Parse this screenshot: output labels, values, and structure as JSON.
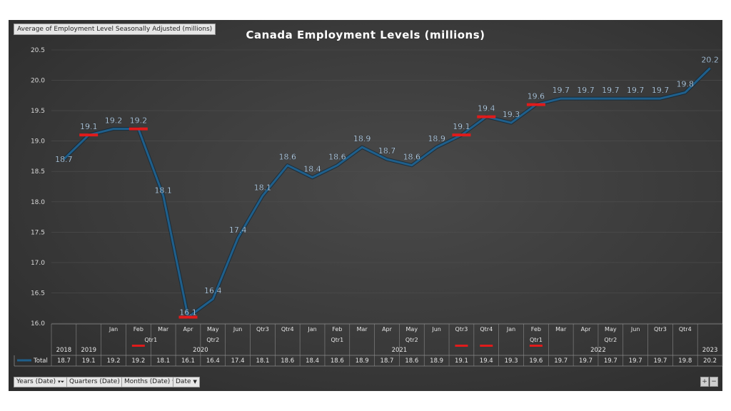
{
  "field_label": "Average of Employment Level Seasonally Adjusted (millions)",
  "filter_buttons": [
    {
      "label": "Years (Date)",
      "icon": "filter-funnel-icon"
    },
    {
      "label": "Quarters (Date)",
      "icon": "dropdown-arrow-icon"
    },
    {
      "label": "Months (Date)",
      "icon": "dropdown-arrow-icon"
    },
    {
      "label": "Date",
      "icon": "dropdown-arrow-icon"
    }
  ],
  "zoom_buttons": [
    "+",
    "−"
  ],
  "colors": {
    "line": "#1f5f8b",
    "highlight": "#e01b1b",
    "label": "#d6ecff",
    "background": "#3a3a3a"
  },
  "chart_data": {
    "type": "line",
    "title": "Canada Employment Levels (millions)",
    "ylim": [
      16.0,
      20.5
    ],
    "yticks": [
      "20.5",
      "20.0",
      "19.5",
      "19.0",
      "18.5",
      "18.0",
      "17.5",
      "17.0",
      "16.5",
      "16.0"
    ],
    "series": [
      {
        "name": "Total"
      }
    ],
    "legend_label": "Total",
    "legend_position": "bottom-left",
    "points": [
      {
        "x": "2018",
        "value": 18.7,
        "label": "18.7",
        "highlight": false
      },
      {
        "x": "2019",
        "value": 19.1,
        "label": "19.1",
        "highlight": true
      },
      {
        "x": "Jan",
        "value": 19.2,
        "label": "19.2",
        "highlight": false
      },
      {
        "x": "Feb",
        "value": 19.2,
        "label": "19.2",
        "highlight": true
      },
      {
        "x": "Mar",
        "value": 18.1,
        "label": "18.1",
        "highlight": false
      },
      {
        "x": "Apr",
        "value": 16.1,
        "label": "16.1",
        "highlight": true
      },
      {
        "x": "May",
        "value": 16.4,
        "label": "16.4",
        "highlight": false
      },
      {
        "x": "Jun",
        "value": 17.4,
        "label": "17.4",
        "highlight": false
      },
      {
        "x": "Qtr3",
        "value": 18.1,
        "label": "18.1",
        "highlight": false
      },
      {
        "x": "Qtr4",
        "value": 18.6,
        "label": "18.6",
        "highlight": false
      },
      {
        "x": "Jan",
        "value": 18.4,
        "label": "18.4",
        "highlight": false
      },
      {
        "x": "Feb",
        "value": 18.6,
        "label": "18.6",
        "highlight": false
      },
      {
        "x": "Mar",
        "value": 18.9,
        "label": "18.9",
        "highlight": false
      },
      {
        "x": "Apr",
        "value": 18.7,
        "label": "18.7",
        "highlight": false
      },
      {
        "x": "May",
        "value": 18.6,
        "label": "18.6",
        "highlight": false
      },
      {
        "x": "Jun",
        "value": 18.9,
        "label": "18.9",
        "highlight": false
      },
      {
        "x": "Qtr3",
        "value": 19.1,
        "label": "19.1",
        "highlight": true
      },
      {
        "x": "Qtr4",
        "value": 19.4,
        "label": "19.4",
        "highlight": true
      },
      {
        "x": "Jan",
        "value": 19.3,
        "label": "19.3",
        "highlight": false
      },
      {
        "x": "Feb",
        "value": 19.6,
        "label": "19.6",
        "highlight": true
      },
      {
        "x": "Mar",
        "value": 19.7,
        "label": "19.7",
        "highlight": false
      },
      {
        "x": "Apr",
        "value": 19.7,
        "label": "19.7",
        "highlight": false
      },
      {
        "x": "May",
        "value": 19.7,
        "label": "19.7",
        "highlight": false
      },
      {
        "x": "Jun",
        "value": 19.7,
        "label": "19.7",
        "highlight": false
      },
      {
        "x": "Qtr3",
        "value": 19.7,
        "label": "19.7",
        "highlight": false
      },
      {
        "x": "Qtr4",
        "value": 19.8,
        "label": "19.8",
        "highlight": false
      },
      {
        "x": "2023",
        "value": 20.2,
        "label": "20.2",
        "highlight": false
      }
    ],
    "axis_rows": {
      "row1": [
        {
          "span": [
            2,
            5
          ],
          "label": "Qtr1",
          "highlight": true
        },
        {
          "span": [
            5,
            7
          ],
          "label": "Qtr2",
          "highlight": false
        },
        {
          "span": [
            10,
            12
          ],
          "label": "Qtr1",
          "highlight": false
        },
        {
          "span": [
            13,
            15
          ],
          "label": "Qtr2",
          "highlight": false
        },
        {
          "span": [
            18,
            20
          ],
          "label": "Qtr1",
          "highlight": true
        },
        {
          "span": [
            21,
            23
          ],
          "label": "Qtr2",
          "highlight": false
        }
      ],
      "row2": [
        {
          "span": [
            0,
            0
          ],
          "label": "2018"
        },
        {
          "span": [
            1,
            1
          ],
          "label": "2019"
        },
        {
          "span": [
            2,
            9
          ],
          "label": "2020"
        },
        {
          "span": [
            10,
            17
          ],
          "label": "2021"
        },
        {
          "span": [
            18,
            25
          ],
          "label": "2022"
        },
        {
          "span": [
            26,
            26
          ],
          "label": "2023"
        }
      ]
    },
    "table_values": [
      "18.7",
      "19.1",
      "19.2",
      "19.2",
      "18.1",
      "16.1",
      "16.4",
      "17.4",
      "18.1",
      "18.6",
      "18.4",
      "18.6",
      "18.9",
      "18.7",
      "18.6",
      "18.9",
      "19.1",
      "19.4",
      "19.3",
      "19.6",
      "19.7",
      "19.7",
      "19.7",
      "19.7",
      "19.7",
      "19.8",
      "20.2"
    ]
  }
}
